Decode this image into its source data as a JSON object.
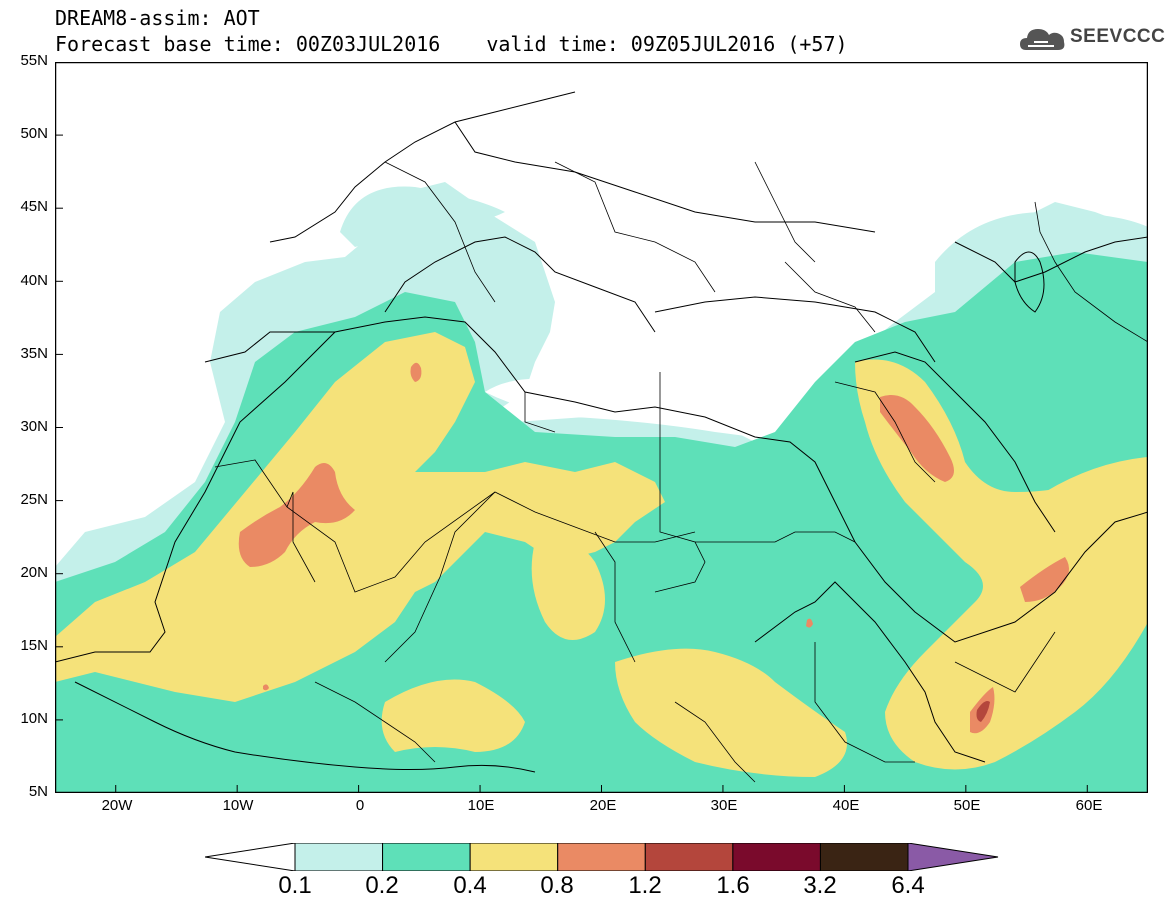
{
  "header": {
    "line1": "DREAM8-assim: AOT",
    "line2_base": "Forecast base time: 00Z03JUL2016",
    "line2_valid": "valid time: 09Z05JUL2016 (+57)"
  },
  "logo": {
    "text": "SEEVCCC",
    "icon": "cloud-icon"
  },
  "map": {
    "lon_range": [
      -25,
      65
    ],
    "lat_range": [
      5,
      55
    ],
    "y_labels": [
      "55N",
      "50N",
      "45N",
      "40N",
      "35N",
      "30N",
      "25N",
      "20N",
      "15N",
      "10N",
      "5N"
    ],
    "x_labels": [
      "20W",
      "10W",
      "0",
      "10E",
      "20E",
      "30E",
      "40E",
      "50E",
      "60E"
    ]
  },
  "colorbar": {
    "labels": [
      "0.1",
      "0.2",
      "0.4",
      "0.8",
      "1.2",
      "1.6",
      "3.2",
      "6.4"
    ],
    "colors": [
      "#c4f0ea",
      "#5ee0b8",
      "#f5e27a",
      "#ea8a64",
      "#b4463c",
      "#7a0a2c",
      "#3a2414",
      "#8a5aa6"
    ]
  },
  "colors": {
    "low": "#c4f0ea",
    "mid": "#5ee0b8",
    "high": "#f5e27a",
    "vhigh": "#ea8a64",
    "border": "#000000"
  }
}
